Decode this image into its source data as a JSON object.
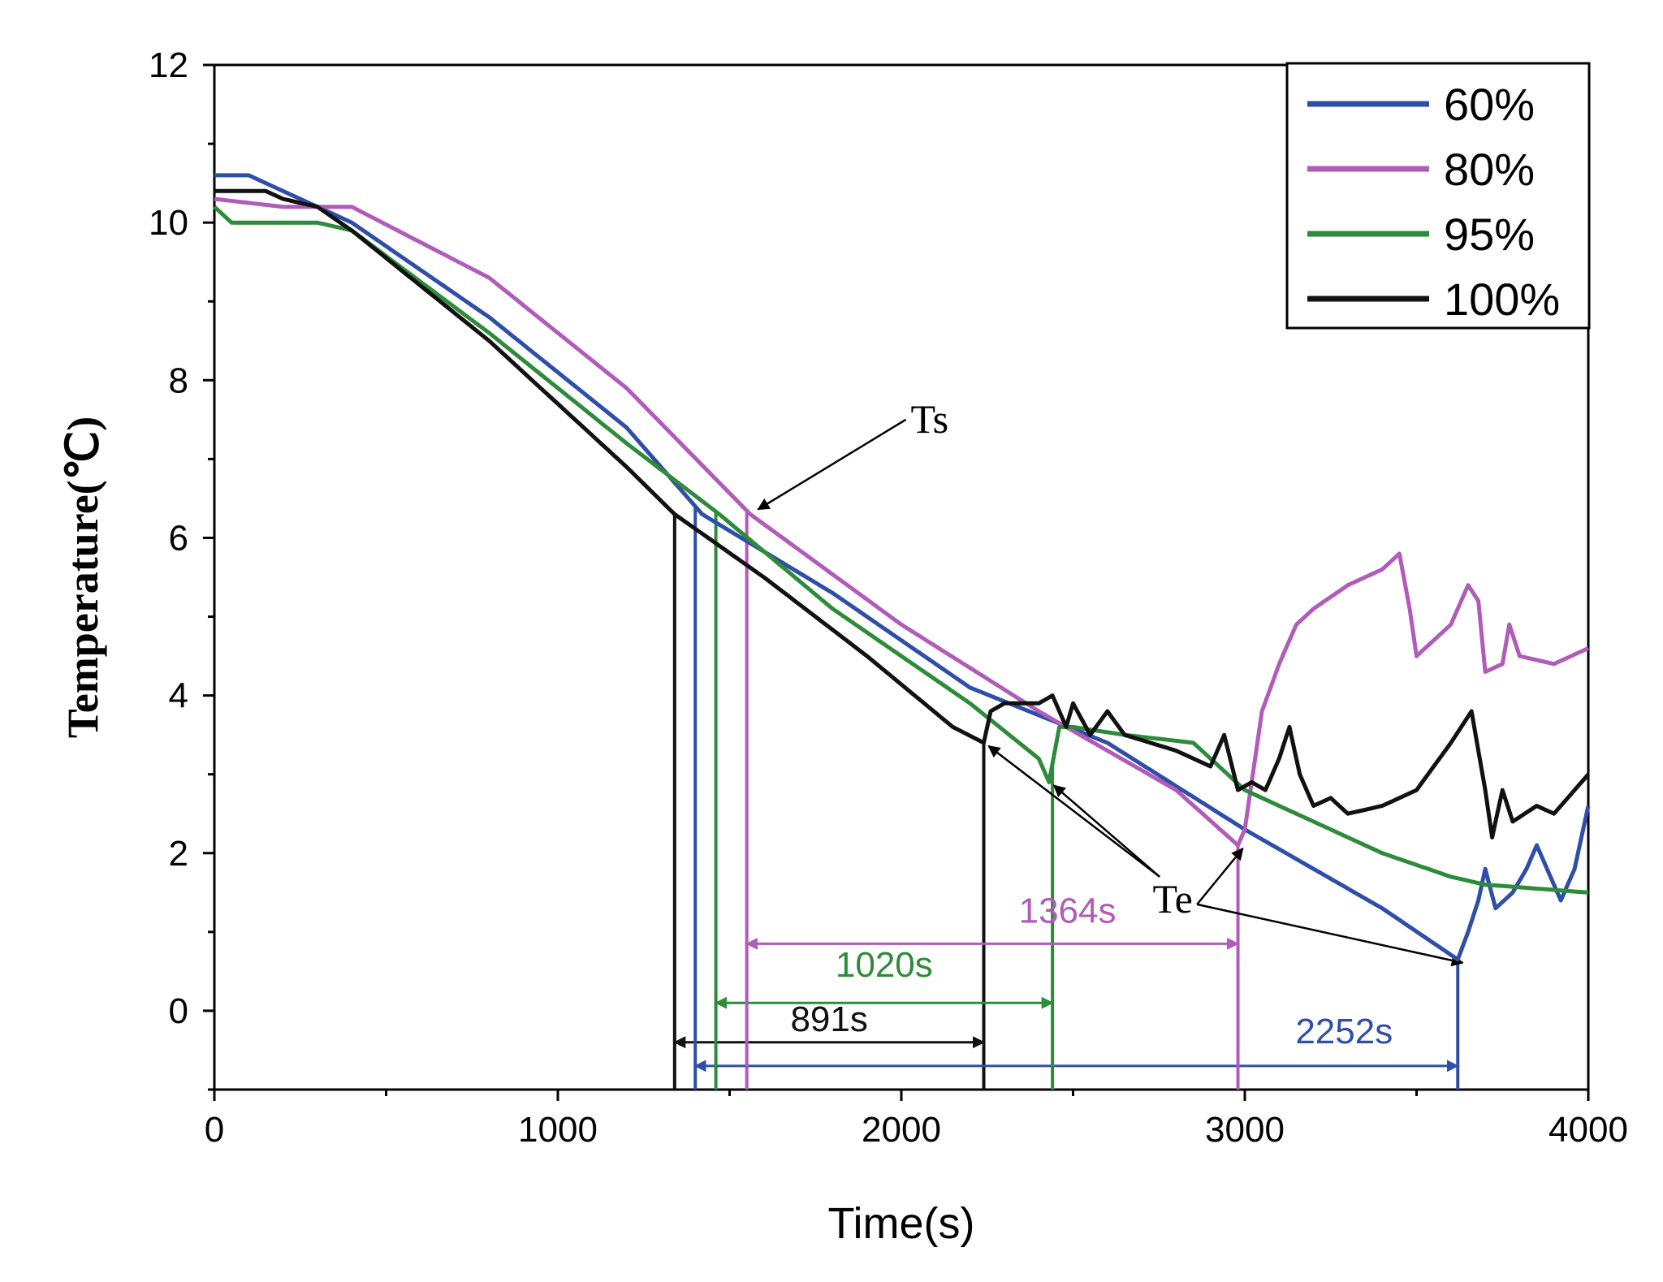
{
  "chart_data": {
    "type": "line",
    "xlabel": "Time(s)",
    "ylabel": "Temperature(℃)",
    "xlim": [
      0,
      4000
    ],
    "ylim": [
      -1,
      12
    ],
    "xticks": [
      0,
      1000,
      2000,
      3000,
      4000
    ],
    "yticks": [
      0,
      2,
      4,
      6,
      8,
      10,
      12
    ],
    "legend_position": "top-right",
    "series": [
      {
        "name": "60%",
        "color": "#2e4ea8",
        "points": [
          [
            0,
            10.6
          ],
          [
            100,
            10.6
          ],
          [
            200,
            10.4
          ],
          [
            300,
            10.2
          ],
          [
            400,
            10.0
          ],
          [
            800,
            8.8
          ],
          [
            1200,
            7.4
          ],
          [
            1420,
            6.3
          ],
          [
            1800,
            5.3
          ],
          [
            2200,
            4.1
          ],
          [
            2600,
            3.4
          ],
          [
            3000,
            2.3
          ],
          [
            3400,
            1.3
          ],
          [
            3620,
            0.65
          ],
          [
            3650,
            1.0
          ],
          [
            3680,
            1.4
          ],
          [
            3700,
            1.8
          ],
          [
            3730,
            1.3
          ],
          [
            3780,
            1.5
          ],
          [
            3820,
            1.8
          ],
          [
            3850,
            2.1
          ],
          [
            3880,
            1.8
          ],
          [
            3920,
            1.4
          ],
          [
            3960,
            1.8
          ],
          [
            4000,
            2.6
          ]
        ]
      },
      {
        "name": "80%",
        "color": "#b05cb8",
        "points": [
          [
            0,
            10.3
          ],
          [
            200,
            10.2
          ],
          [
            400,
            10.2
          ],
          [
            800,
            9.3
          ],
          [
            1200,
            7.9
          ],
          [
            1560,
            6.3
          ],
          [
            2000,
            4.9
          ],
          [
            2400,
            3.8
          ],
          [
            2800,
            2.8
          ],
          [
            2980,
            2.1
          ],
          [
            3000,
            2.3
          ],
          [
            3050,
            3.8
          ],
          [
            3100,
            4.4
          ],
          [
            3150,
            4.9
          ],
          [
            3200,
            5.1
          ],
          [
            3300,
            5.4
          ],
          [
            3400,
            5.6
          ],
          [
            3450,
            5.8
          ],
          [
            3480,
            5.1
          ],
          [
            3500,
            4.5
          ],
          [
            3600,
            4.9
          ],
          [
            3650,
            5.4
          ],
          [
            3680,
            5.2
          ],
          [
            3700,
            4.3
          ],
          [
            3750,
            4.4
          ],
          [
            3770,
            4.9
          ],
          [
            3800,
            4.5
          ],
          [
            3900,
            4.4
          ],
          [
            4000,
            4.6
          ]
        ]
      },
      {
        "name": "95%",
        "color": "#2e8b3a",
        "points": [
          [
            0,
            10.2
          ],
          [
            50,
            10.0
          ],
          [
            300,
            10.0
          ],
          [
            400,
            9.9
          ],
          [
            800,
            8.6
          ],
          [
            1200,
            7.2
          ],
          [
            1470,
            6.3
          ],
          [
            1800,
            5.1
          ],
          [
            2200,
            3.9
          ],
          [
            2400,
            3.2
          ],
          [
            2430,
            2.9
          ],
          [
            2460,
            3.6
          ],
          [
            2500,
            3.6
          ],
          [
            2650,
            3.5
          ],
          [
            2850,
            3.4
          ],
          [
            2950,
            3.0
          ],
          [
            3000,
            2.8
          ],
          [
            3200,
            2.4
          ],
          [
            3400,
            2.0
          ],
          [
            3600,
            1.7
          ],
          [
            3700,
            1.6
          ],
          [
            4000,
            1.5
          ]
        ]
      },
      {
        "name": "100%",
        "color": "#111111",
        "points": [
          [
            0,
            10.4
          ],
          [
            150,
            10.4
          ],
          [
            200,
            10.3
          ],
          [
            300,
            10.2
          ],
          [
            400,
            9.9
          ],
          [
            800,
            8.5
          ],
          [
            1200,
            6.9
          ],
          [
            1340,
            6.3
          ],
          [
            1600,
            5.5
          ],
          [
            1900,
            4.5
          ],
          [
            2150,
            3.6
          ],
          [
            2240,
            3.4
          ],
          [
            2260,
            3.8
          ],
          [
            2300,
            3.9
          ],
          [
            2400,
            3.9
          ],
          [
            2440,
            4.0
          ],
          [
            2480,
            3.6
          ],
          [
            2500,
            3.9
          ],
          [
            2550,
            3.5
          ],
          [
            2600,
            3.8
          ],
          [
            2650,
            3.5
          ],
          [
            2800,
            3.3
          ],
          [
            2900,
            3.1
          ],
          [
            2940,
            3.5
          ],
          [
            2980,
            2.8
          ],
          [
            3020,
            2.9
          ],
          [
            3060,
            2.8
          ],
          [
            3100,
            3.2
          ],
          [
            3130,
            3.6
          ],
          [
            3160,
            3.0
          ],
          [
            3200,
            2.6
          ],
          [
            3250,
            2.7
          ],
          [
            3300,
            2.5
          ],
          [
            3400,
            2.6
          ],
          [
            3500,
            2.8
          ],
          [
            3600,
            3.4
          ],
          [
            3660,
            3.8
          ],
          [
            3700,
            2.8
          ],
          [
            3720,
            2.2
          ],
          [
            3750,
            2.8
          ],
          [
            3780,
            2.4
          ],
          [
            3850,
            2.6
          ],
          [
            3900,
            2.5
          ],
          [
            4000,
            3.0
          ]
        ]
      }
    ],
    "annotations": {
      "ts_label": "Ts",
      "te_label": "Te",
      "ts_point": [
        1550,
        6.3
      ],
      "ts_text_at": [
        1980,
        7.5
      ],
      "te_text_at": [
        2790,
        1.7
      ],
      "te_points": [
        [
          2240,
          3.4
        ],
        [
          2430,
          2.9
        ],
        [
          2980,
          2.1
        ],
        [
          3620,
          0.65
        ]
      ],
      "markers": [
        {
          "series": "100%",
          "start": 1340,
          "end": 2240,
          "label": "891s",
          "y": -0.4,
          "color": "#111111"
        },
        {
          "series": "60%",
          "start": 1400,
          "end": 3620,
          "label": "2252s",
          "y": -0.7,
          "color": "#2e4ea8"
        },
        {
          "series": "95%",
          "start": 1460,
          "end": 2440,
          "label": "1020s",
          "y": 0.1,
          "color": "#2e8b3a"
        },
        {
          "series": "80%",
          "start": 1550,
          "end": 2980,
          "label": "1364s",
          "y": 0.85,
          "color": "#b05cb8"
        }
      ]
    }
  }
}
